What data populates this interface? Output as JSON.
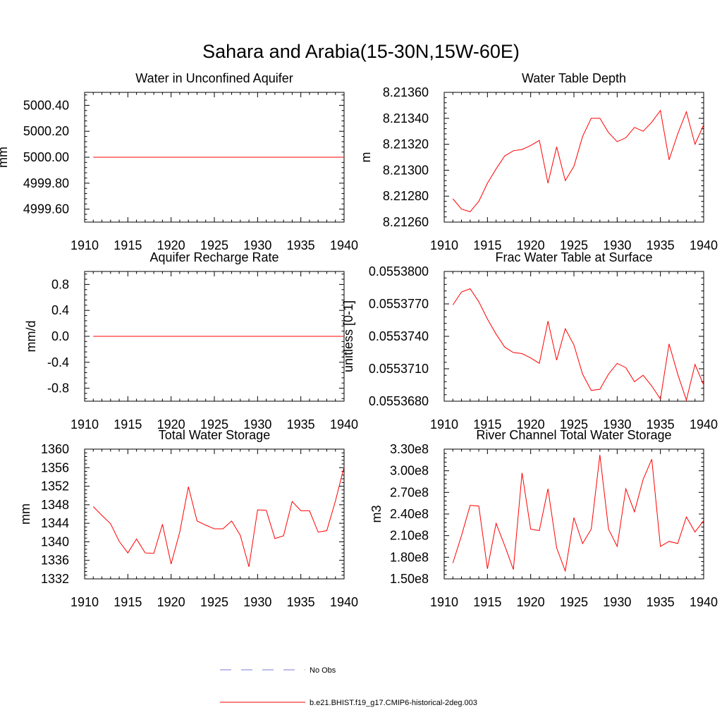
{
  "title": "Sahara and Arabia(15-30N,15W-60E)",
  "line_color": "#ff0000",
  "obs_color": "#7b7bd9",
  "legend": {
    "entries": [
      {
        "label": "No Obs",
        "style": "dashed",
        "color": "#7b7bd9"
      },
      {
        "label": "b.e21.BHIST.f19_g17.CMIP6-historical-2deg.003",
        "style": "solid",
        "color": "#ff0000"
      }
    ]
  },
  "chart_data": [
    {
      "type": "line",
      "title": "Water in Unconfined Aquifer",
      "ylabel": "mm",
      "xlabel": "",
      "xlim": [
        1910,
        1940
      ],
      "ylim": [
        4999.5,
        5000.5
      ],
      "xticks": [
        1910,
        1915,
        1920,
        1925,
        1930,
        1935,
        1940
      ],
      "xtick_labels": [
        "1910",
        "1915",
        "1920",
        "1925",
        "1930",
        "1935",
        "1940"
      ],
      "yticks": [
        4999.6,
        4999.8,
        5000.0,
        5000.2,
        5000.4
      ],
      "ytick_labels": [
        "4999.60",
        "4999.80",
        "5000.00",
        "5000.20",
        "5000.40"
      ],
      "x": [
        1911,
        1940
      ],
      "series": [
        {
          "values": [
            5000.0,
            5000.0
          ]
        }
      ]
    },
    {
      "type": "line",
      "title": "Water Table Depth",
      "ylabel": "m",
      "xlabel": "",
      "xlim": [
        1910,
        1940
      ],
      "ylim": [
        8.2126,
        8.2136
      ],
      "xticks": [
        1910,
        1915,
        1920,
        1925,
        1930,
        1935,
        1940
      ],
      "xtick_labels": [
        "1910",
        "1915",
        "1920",
        "1925",
        "1930",
        "1935",
        "1940"
      ],
      "yticks": [
        8.2126,
        8.2128,
        8.213,
        8.2132,
        8.2134,
        8.2136
      ],
      "ytick_labels": [
        "8.21260",
        "8.21280",
        "8.21300",
        "8.21320",
        "8.21340",
        "8.21360"
      ],
      "x": [
        1911,
        1912,
        1913,
        1914,
        1915,
        1916,
        1917,
        1918,
        1919,
        1920,
        1921,
        1922,
        1923,
        1924,
        1925,
        1926,
        1927,
        1928,
        1929,
        1930,
        1931,
        1932,
        1933,
        1934,
        1935,
        1936,
        1937,
        1938,
        1939,
        1940
      ],
      "series": [
        {
          "values": [
            8.21278,
            8.2127,
            8.21268,
            8.21276,
            8.2129,
            8.21301,
            8.21311,
            8.21315,
            8.21316,
            8.21319,
            8.21323,
            8.2129,
            8.21318,
            8.21292,
            8.21303,
            8.21326,
            8.2134,
            8.2134,
            8.21329,
            8.21322,
            8.21325,
            8.21333,
            8.2133,
            8.21337,
            8.21346,
            8.21308,
            8.21328,
            8.21345,
            8.2132,
            8.21335
          ]
        }
      ]
    },
    {
      "type": "line",
      "title": "Aquifer Recharge Rate",
      "ylabel": "mm/d",
      "xlabel": "",
      "xlim": [
        1910,
        1940
      ],
      "ylim": [
        -1.0,
        1.0
      ],
      "xticks": [
        1910,
        1915,
        1920,
        1925,
        1930,
        1935,
        1940
      ],
      "xtick_labels": [
        "1910",
        "1915",
        "1920",
        "1925",
        "1930",
        "1935",
        "1940"
      ],
      "yticks": [
        -0.8,
        -0.4,
        0.0,
        0.4,
        0.8
      ],
      "ytick_labels": [
        "-0.8",
        "-0.4",
        "0.0",
        "0.4",
        "0.8"
      ],
      "x": [
        1911,
        1940
      ],
      "series": [
        {
          "values": [
            0.0,
            0.0
          ]
        }
      ]
    },
    {
      "type": "line",
      "title": "Frac Water Table at Surface",
      "ylabel": "unitless [0-1]",
      "xlabel": "",
      "xlim": [
        1910,
        1940
      ],
      "ylim": [
        0.055368,
        0.05538
      ],
      "xticks": [
        1910,
        1915,
        1920,
        1925,
        1930,
        1935,
        1940
      ],
      "xtick_labels": [
        "1910",
        "1915",
        "1920",
        "1925",
        "1930",
        "1935",
        "1940"
      ],
      "yticks": [
        0.055368,
        0.055371,
        0.055374,
        0.055377,
        0.05538
      ],
      "ytick_labels": [
        "0.0553680",
        "0.0553710",
        "0.0553740",
        "0.0553770",
        "0.0553800"
      ],
      "x": [
        1911,
        1912,
        1913,
        1914,
        1915,
        1916,
        1917,
        1918,
        1919,
        1920,
        1921,
        1922,
        1923,
        1924,
        1925,
        1926,
        1927,
        1928,
        1929,
        1930,
        1931,
        1932,
        1933,
        1934,
        1935,
        1936,
        1937,
        1938,
        1939,
        1940
      ],
      "series": [
        {
          "values": [
            0.0553769,
            0.0553781,
            0.0553784,
            0.0553772,
            0.0553756,
            0.0553742,
            0.055373,
            0.0553725,
            0.0553724,
            0.055372,
            0.0553715,
            0.0553754,
            0.0553718,
            0.0553747,
            0.0553732,
            0.0553705,
            0.055369,
            0.0553691,
            0.0553705,
            0.0553715,
            0.0553711,
            0.0553698,
            0.0553704,
            0.0553694,
            0.0553682,
            0.0553733,
            0.0553705,
            0.0553681,
            0.0553714,
            0.0553695
          ]
        }
      ]
    },
    {
      "type": "line",
      "title": "Total Water Storage",
      "ylabel": "mm",
      "xlabel": "",
      "xlim": [
        1910,
        1940
      ],
      "ylim": [
        1332,
        1360
      ],
      "xticks": [
        1910,
        1915,
        1920,
        1925,
        1930,
        1935,
        1940
      ],
      "xtick_labels": [
        "1910",
        "1915",
        "1920",
        "1925",
        "1930",
        "1935",
        "1940"
      ],
      "yticks": [
        1332,
        1336,
        1340,
        1344,
        1348,
        1352,
        1356,
        1360
      ],
      "ytick_labels": [
        "1332",
        "1336",
        "1340",
        "1344",
        "1348",
        "1352",
        "1356",
        "1360"
      ],
      "x": [
        1911,
        1912,
        1913,
        1914,
        1915,
        1916,
        1917,
        1918,
        1919,
        1920,
        1921,
        1922,
        1923,
        1924,
        1925,
        1926,
        1927,
        1928,
        1929,
        1930,
        1931,
        1932,
        1933,
        1934,
        1935,
        1936,
        1937,
        1938,
        1939,
        1940
      ],
      "series": [
        {
          "values": [
            1347.6,
            1345.7,
            1343.9,
            1340.1,
            1337.6,
            1340.6,
            1337.6,
            1337.5,
            1343.8,
            1335.2,
            1342.1,
            1351.9,
            1344.5,
            1343.6,
            1342.8,
            1342.8,
            1344.5,
            1341.4,
            1334.6,
            1346.9,
            1346.8,
            1340.7,
            1341.3,
            1348.7,
            1346.7,
            1346.7,
            1342.1,
            1342.4,
            1348.8,
            1356.2
          ]
        }
      ]
    },
    {
      "type": "line",
      "title": "River Channel Total Water Storage",
      "ylabel": "m3",
      "xlabel": "",
      "xlim": [
        1910,
        1940
      ],
      "ylim": [
        150000000,
        330000000
      ],
      "xticks": [
        1910,
        1915,
        1920,
        1925,
        1930,
        1935,
        1940
      ],
      "xtick_labels": [
        "1910",
        "1915",
        "1920",
        "1925",
        "1930",
        "1935",
        "1940"
      ],
      "yticks": [
        150000000,
        180000000,
        210000000,
        240000000,
        270000000,
        300000000,
        330000000
      ],
      "ytick_labels": [
        "1.50e8",
        "1.80e8",
        "2.10e8",
        "2.40e8",
        "2.70e8",
        "3.00e8",
        "3.30e8"
      ],
      "x": [
        1911,
        1912,
        1913,
        1914,
        1915,
        1916,
        1917,
        1918,
        1919,
        1920,
        1921,
        1922,
        1923,
        1924,
        1925,
        1926,
        1927,
        1928,
        1929,
        1930,
        1931,
        1932,
        1933,
        1934,
        1935,
        1936,
        1937,
        1938,
        1939,
        1940
      ],
      "series": [
        {
          "values": [
            172000000,
            210000000,
            252000000,
            251000000,
            164000000,
            227000000,
            196000000,
            163000000,
            297000000,
            219000000,
            217000000,
            275000000,
            193000000,
            161000000,
            235000000,
            199000000,
            219000000,
            322000000,
            219000000,
            195000000,
            275000000,
            243000000,
            288000000,
            316000000,
            195000000,
            202000000,
            199000000,
            236000000,
            215000000,
            231000000
          ]
        }
      ]
    }
  ]
}
